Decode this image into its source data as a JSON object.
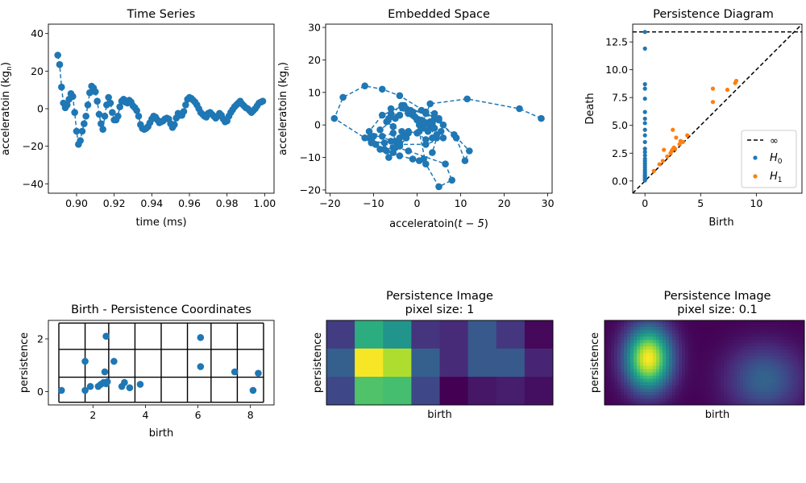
{
  "colors": {
    "series": "#1f77b4",
    "h1": "#ff7f0e",
    "frame": "#000000",
    "viridis": [
      "#440154",
      "#482878",
      "#3e4989",
      "#31688e",
      "#26828e",
      "#1f9e89",
      "#35b779",
      "#6ece58",
      "#b5de2b",
      "#fde725"
    ]
  },
  "chart_data": [
    {
      "id": "time-series",
      "type": "line",
      "title": "Time Series",
      "xlabel": "time (ms)",
      "ylabel": "acceleratoin (kg",
      "ylabel_sub": "n",
      "ylabel_end": ")",
      "xlim": [
        0.885,
        1.005
      ],
      "ylim": [
        -45,
        45
      ],
      "xticks": [
        0.9,
        0.92,
        0.94,
        0.96,
        0.98,
        1.0
      ],
      "xtick_labels": [
        "0.90",
        "0.92",
        "0.94",
        "0.96",
        "0.98",
        "1.00"
      ],
      "yticks": [
        -40,
        -20,
        0,
        20,
        40
      ],
      "ytick_labels": [
        "−40",
        "−20",
        "0",
        "20",
        "40"
      ],
      "x": [
        0.89,
        0.891,
        0.892,
        0.893,
        0.894,
        0.895,
        0.896,
        0.897,
        0.898,
        0.899,
        0.9,
        0.901,
        0.902,
        0.903,
        0.904,
        0.905,
        0.906,
        0.907,
        0.908,
        0.909,
        0.91,
        0.911,
        0.912,
        0.913,
        0.914,
        0.915,
        0.916,
        0.917,
        0.918,
        0.919,
        0.92,
        0.921,
        0.922,
        0.923,
        0.924,
        0.925,
        0.926,
        0.927,
        0.928,
        0.929,
        0.93,
        0.931,
        0.932,
        0.933,
        0.934,
        0.935,
        0.936,
        0.937,
        0.938,
        0.939,
        0.94,
        0.941,
        0.942,
        0.943,
        0.944,
        0.945,
        0.946,
        0.947,
        0.948,
        0.949,
        0.95,
        0.951,
        0.952,
        0.953,
        0.954,
        0.955,
        0.956,
        0.957,
        0.958,
        0.959,
        0.96,
        0.961,
        0.962,
        0.963,
        0.964,
        0.965,
        0.966,
        0.967,
        0.968,
        0.969,
        0.97,
        0.971,
        0.972,
        0.973,
        0.974,
        0.975,
        0.976,
        0.977,
        0.978,
        0.979,
        0.98,
        0.981,
        0.982,
        0.983,
        0.984,
        0.985,
        0.986,
        0.987,
        0.988,
        0.989,
        0.99,
        0.991,
        0.992,
        0.993,
        0.994,
        0.995,
        0.996,
        0.997,
        0.998,
        0.999
      ],
      "y": [
        28.5,
        23.5,
        11.5,
        3,
        0.5,
        2,
        5,
        8,
        6.5,
        -2,
        -12,
        -19,
        -17,
        -12,
        -8,
        -4,
        2,
        8.5,
        12,
        11,
        9,
        4,
        -3,
        -8,
        -11,
        -4,
        2,
        6,
        3,
        -2,
        -6,
        -6,
        -4,
        1,
        4,
        5,
        3.5,
        3,
        4.5,
        3.5,
        1.5,
        0.5,
        -1,
        -4,
        -8.5,
        -10.5,
        -11,
        -10.5,
        -9.5,
        -7.5,
        -5.5,
        -4,
        -4.5,
        -6,
        -7.5,
        -7,
        -6.5,
        -5.5,
        -5,
        -5.5,
        -8,
        -10,
        -8.5,
        -5,
        -2.5,
        -3.5,
        -3.5,
        -1.5,
        2,
        5,
        6,
        5.5,
        4.5,
        3.5,
        2,
        0,
        -2,
        -3,
        -4,
        -4.5,
        -2.5,
        -2,
        -3,
        -4,
        -5,
        -4,
        -2.5,
        -3.5,
        -5.5,
        -7,
        -6.5,
        -4,
        -2,
        -0.5,
        1,
        2,
        3,
        4,
        2.5,
        1.5,
        0.5,
        0,
        -1,
        -2,
        -1,
        0,
        1.5,
        3,
        3.5,
        4
      ]
    },
    {
      "id": "embedded-space",
      "type": "scatter",
      "title": "Embedded Space",
      "xlabel": "acceleratoin(",
      "xlabel_math": "t − 5",
      "xlabel_end": ")",
      "ylabel": "acceleratoin (kg",
      "ylabel_sub": "n",
      "ylabel_end": ")",
      "xlim": [
        -21,
        31
      ],
      "ylim": [
        -21,
        31
      ],
      "xticks": [
        -20,
        -10,
        0,
        10,
        20,
        30
      ],
      "xtick_labels": [
        "−20",
        "−10",
        "0",
        "10",
        "20",
        "30"
      ],
      "yticks": [
        -20,
        -10,
        0,
        10,
        20,
        30
      ],
      "ytick_labels": [
        "−20",
        "−10",
        "0",
        "10",
        "20",
        "30"
      ],
      "x": [
        28.5,
        23.5,
        11.5,
        3,
        0.5,
        2,
        5,
        8,
        6.5,
        -2,
        -12,
        -19,
        -17,
        -12,
        -8,
        -4,
        2,
        8.5,
        12,
        11,
        9,
        4,
        -3,
        -8,
        -11,
        -4,
        2,
        6,
        3,
        -2,
        -6,
        -6,
        -4,
        1,
        4,
        5,
        3.5,
        3,
        4.5,
        3.5,
        1.5,
        0.5,
        -1,
        -4,
        -8.5,
        -10.5,
        -11,
        -10.5,
        -9.5,
        -7.5,
        -5.5,
        -4,
        -4.5,
        -6,
        -7.5,
        -7,
        -6.5,
        -5.5,
        -5,
        -5.5,
        -8,
        -10,
        -8.5,
        -5,
        -2.5,
        -3.5,
        -3.5,
        -1.5,
        2,
        5,
        6,
        5.5,
        4.5,
        3.5,
        2,
        0,
        -2,
        -3,
        -4,
        -4.5,
        -2.5,
        -2,
        -3,
        -4,
        -5,
        -4,
        -2.5,
        -3.5,
        -5.5,
        -7,
        -6.5,
        -4,
        -2,
        -0.5,
        1,
        2,
        3,
        4,
        2.5,
        1.5,
        0.5,
        0,
        -1,
        -2,
        -1
      ],
      "y": [
        2,
        5,
        8,
        6.5,
        -2,
        -12,
        -19,
        -17,
        -12,
        -8,
        -4,
        2,
        8.5,
        12,
        11,
        9,
        4,
        -3,
        -8,
        -11,
        -4,
        2,
        6,
        3,
        -2,
        -6,
        -6,
        -4,
        1,
        4,
        5,
        3.5,
        3,
        4.5,
        3.5,
        1.5,
        0.5,
        -1,
        -4,
        -8.5,
        -10.5,
        -11,
        -10.5,
        -9.5,
        -7.5,
        -5.5,
        -4,
        -4.5,
        -6,
        -7.5,
        -7,
        -6.5,
        -5.5,
        -5,
        -5.5,
        -8,
        -10,
        -8.5,
        -5,
        -2.5,
        -3.5,
        -3.5,
        -1.5,
        2,
        5,
        6,
        5.5,
        4.5,
        3.5,
        2,
        0,
        -2,
        -3,
        -4,
        -4.5,
        -2.5,
        -2,
        -3,
        -4,
        -5,
        -4,
        -2.5,
        -3.5,
        -5.5,
        -7,
        -6.5,
        -4,
        -2,
        -0.5,
        1,
        2,
        3,
        4,
        2.5,
        1.5,
        0.5,
        0,
        -1,
        -2,
        -1,
        0,
        1.5,
        3,
        3.5,
        4
      ]
    },
    {
      "id": "persistence-diagram",
      "type": "scatter",
      "title": "Persistence Diagram",
      "xlabel": "Birth",
      "ylabel": "Death",
      "xlim": [
        -1.1,
        14.1
      ],
      "ylim": [
        -1.1,
        14.1
      ],
      "xticks": [
        0,
        5,
        10
      ],
      "xtick_labels": [
        "0",
        "5",
        "10"
      ],
      "yticks": [
        0.0,
        2.5,
        5.0,
        7.5,
        10.0,
        12.5
      ],
      "ytick_labels": [
        "0.0",
        "2.5",
        "5.0",
        "7.5",
        "10.0",
        "12.5"
      ],
      "infinity_y": 13.4,
      "legend": {
        "position": "lower-right",
        "entries": [
          {
            "label": "∞",
            "kind": "dashed-line"
          },
          {
            "label": "H",
            "sub": "0",
            "kind": "h0"
          },
          {
            "label": "H",
            "sub": "1",
            "kind": "h1"
          }
        ]
      },
      "h0": [
        [
          0,
          0.05
        ],
        [
          0,
          0.15
        ],
        [
          0,
          0.25
        ],
        [
          0,
          0.35
        ],
        [
          0,
          0.45
        ],
        [
          0,
          0.55
        ],
        [
          0,
          0.7
        ],
        [
          0,
          0.85
        ],
        [
          0,
          1.0
        ],
        [
          0,
          1.2
        ],
        [
          0,
          1.4
        ],
        [
          0,
          1.6
        ],
        [
          0,
          1.8
        ],
        [
          0,
          2.0
        ],
        [
          0,
          2.3
        ],
        [
          0,
          2.6
        ],
        [
          0,
          2.9
        ],
        [
          0,
          3.5
        ],
        [
          0,
          4.1
        ],
        [
          0,
          4.6
        ],
        [
          0,
          5.2
        ],
        [
          0,
          5.6
        ],
        [
          0,
          6.2
        ],
        [
          0,
          7.4
        ],
        [
          0,
          8.3
        ],
        [
          0,
          8.7
        ],
        [
          0,
          11.9
        ],
        [
          0,
          13.4
        ]
      ],
      "h1": [
        [
          0.8,
          0.9
        ],
        [
          1.3,
          1.5
        ],
        [
          1.6,
          1.8
        ],
        [
          1.7,
          2.8
        ],
        [
          2.0,
          2.2
        ],
        [
          2.3,
          2.5
        ],
        [
          2.4,
          2.7
        ],
        [
          2.5,
          2.85
        ],
        [
          2.5,
          4.6
        ],
        [
          2.6,
          3.0
        ],
        [
          2.7,
          2.9
        ],
        [
          2.8,
          3.9
        ],
        [
          3.1,
          3.3
        ],
        [
          3.2,
          3.6
        ],
        [
          3.4,
          3.5
        ],
        [
          3.8,
          4.1
        ],
        [
          6.1,
          7.1
        ],
        [
          6.1,
          8.3
        ],
        [
          7.4,
          8.2
        ],
        [
          8.1,
          8.8
        ],
        [
          8.2,
          9.0
        ]
      ]
    },
    {
      "id": "birth-persistence",
      "type": "scatter",
      "title": "Birth - Persistence Coordinates",
      "xlabel": "birth",
      "ylabel": "persistence",
      "xlim": [
        0.3,
        8.9
      ],
      "ylim": [
        -0.5,
        2.7
      ],
      "xticks": [
        2,
        4,
        6,
        8
      ],
      "xtick_labels": [
        "2",
        "4",
        "6",
        "8"
      ],
      "yticks": [
        0,
        2
      ],
      "ytick_labels": [
        "0",
        "2"
      ],
      "grid_x": [
        0.7,
        1.7,
        2.6,
        3.6,
        4.6,
        5.6,
        6.5,
        7.5,
        8.5
      ],
      "grid_y": [
        -0.4,
        0.55,
        1.6,
        2.6
      ],
      "x": [
        0.8,
        1.7,
        1.7,
        1.9,
        2.2,
        2.3,
        2.4,
        2.45,
        2.5,
        2.5,
        2.55,
        2.8,
        3.1,
        3.2,
        3.4,
        3.8,
        6.1,
        6.1,
        7.4,
        8.1,
        8.3
      ],
      "y": [
        0.05,
        1.15,
        0.05,
        0.2,
        0.2,
        0.28,
        0.35,
        0.75,
        0.3,
        2.1,
        0.38,
        1.15,
        0.2,
        0.35,
        0.15,
        0.28,
        0.95,
        2.05,
        0.75,
        0.05,
        0.7
      ]
    },
    {
      "id": "persistence-image-1",
      "type": "heatmap",
      "title": "Persistence Image",
      "subtitle": "pixel size: 1",
      "xlabel": "birth",
      "ylabel": "persistence",
      "values": [
        [
          0.18,
          0.62,
          0.52,
          0.15,
          0.12,
          0.28,
          0.16,
          0.02
        ],
        [
          0.3,
          0.99,
          0.88,
          0.3,
          0.12,
          0.28,
          0.28,
          0.1
        ],
        [
          0.22,
          0.72,
          0.7,
          0.22,
          0.0,
          0.06,
          0.08,
          0.04
        ]
      ]
    },
    {
      "id": "persistence-image-01",
      "type": "heatmap",
      "title": "Persistence Image",
      "subtitle": "pixel size: 0.1",
      "xlabel": "birth",
      "ylabel": "persistence",
      "blobs": [
        {
          "bx": 0.22,
          "py": 0.55,
          "amp": 1.0,
          "sx": 0.08,
          "sy": 0.26
        },
        {
          "bx": 0.8,
          "py": 0.3,
          "amp": 0.32,
          "sx": 0.13,
          "sy": 0.28
        }
      ]
    }
  ]
}
